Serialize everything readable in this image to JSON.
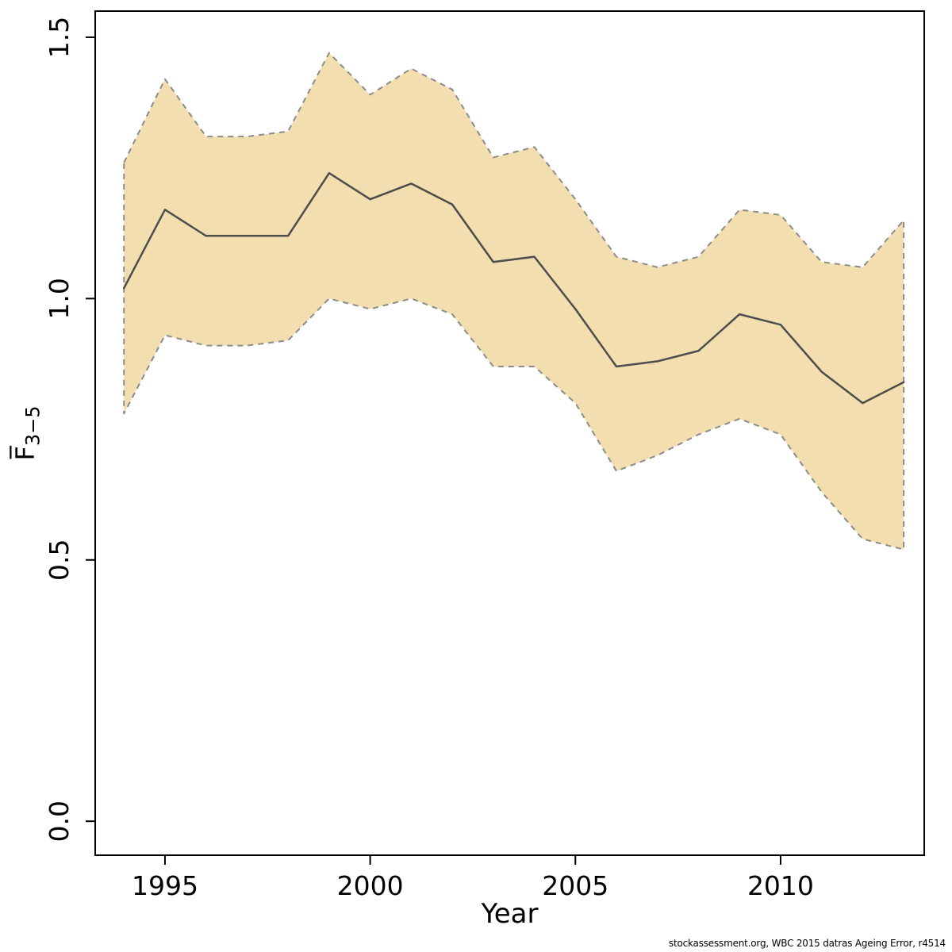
{
  "chart_data": {
    "type": "area",
    "title": "",
    "xlabel": "Year",
    "ylabel": {
      "main": "F̅",
      "sub": "3−5"
    },
    "x": [
      1994,
      1995,
      1996,
      1997,
      1998,
      1999,
      2000,
      2001,
      2002,
      2003,
      2004,
      2005,
      2006,
      2007,
      2008,
      2009,
      2010,
      2011,
      2012,
      2013
    ],
    "series": [
      {
        "name": "Fbar estimate",
        "values": [
          1.02,
          1.17,
          1.12,
          1.12,
          1.12,
          1.24,
          1.19,
          1.22,
          1.18,
          1.07,
          1.08,
          0.98,
          0.87,
          0.88,
          0.9,
          0.97,
          0.95,
          0.86,
          0.8,
          0.84
        ]
      },
      {
        "name": "upper confidence bound",
        "values": [
          1.26,
          1.42,
          1.31,
          1.31,
          1.32,
          1.47,
          1.39,
          1.44,
          1.4,
          1.27,
          1.29,
          1.19,
          1.08,
          1.06,
          1.08,
          1.17,
          1.16,
          1.07,
          1.06,
          1.15
        ]
      },
      {
        "name": "lower confidence bound",
        "values": [
          0.78,
          0.93,
          0.91,
          0.91,
          0.92,
          1.0,
          0.98,
          1.0,
          0.97,
          0.87,
          0.87,
          0.8,
          0.67,
          0.7,
          0.74,
          0.77,
          0.74,
          0.63,
          0.54,
          0.52
        ]
      }
    ],
    "x_ticks": [
      1995,
      2000,
      2005,
      2010
    ],
    "y_ticks": [
      0.0,
      0.5,
      1.0,
      1.5
    ],
    "xlim": [
      1993.3,
      2013.5
    ],
    "ylim": [
      -0.065,
      1.55
    ],
    "grid": false,
    "legend": "none",
    "colors": {
      "band": "#F2DEAE",
      "band_border": "#8C8C8C",
      "line": "#4D4D4D",
      "axis": "#000000",
      "background": "#FFFFFF"
    }
  },
  "footer": {
    "credit": "stockassessment.org, WBC 2015 datras Ageing Error, r4514"
  }
}
